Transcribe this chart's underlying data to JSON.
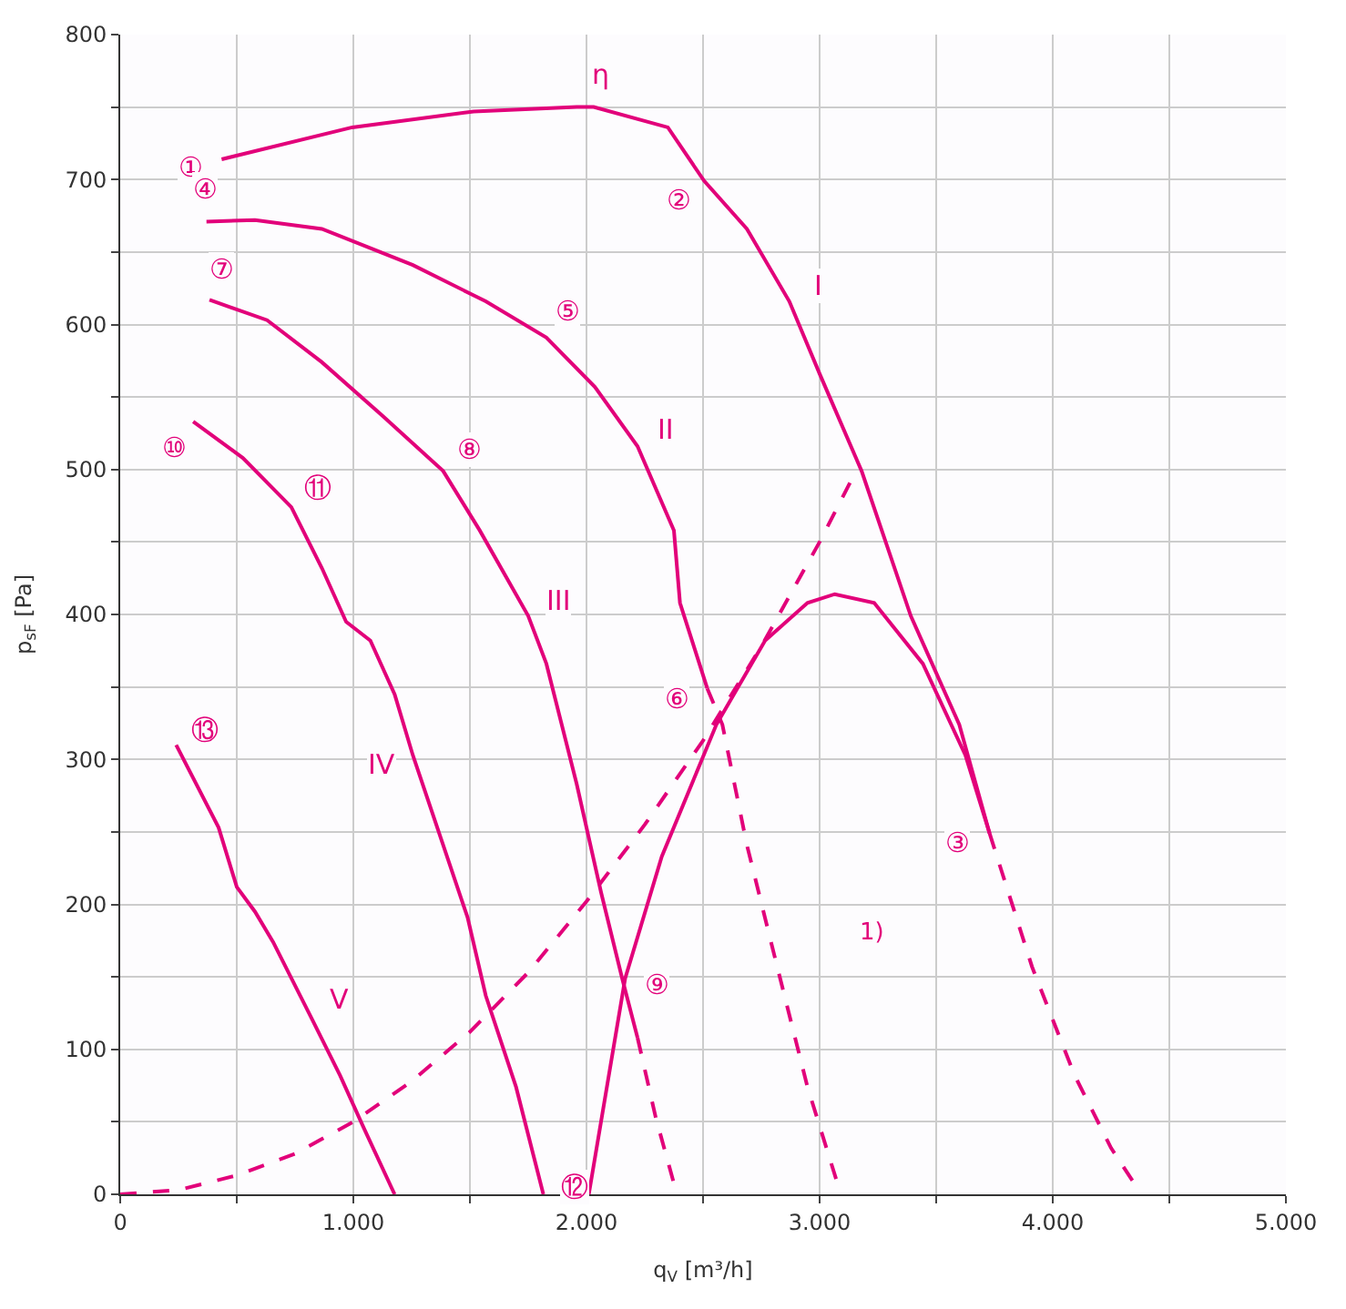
{
  "chart_data": {
    "type": "line",
    "xlabel": "q$_{V}$ [m³/h]",
    "ylabel": "p$_{sF}$ [Pa]",
    "xlim": [
      0,
      5000
    ],
    "ylim": [
      0,
      800
    ],
    "xticks": [
      {
        "value": 0,
        "label": "0"
      },
      {
        "value": 500,
        "label": null
      },
      {
        "value": 1000,
        "label": "1.000"
      },
      {
        "value": 1500,
        "label": null
      },
      {
        "value": 2000,
        "label": "2.000"
      },
      {
        "value": 2500,
        "label": null
      },
      {
        "value": 3000,
        "label": "3.000"
      },
      {
        "value": 3500,
        "label": null
      },
      {
        "value": 4000,
        "label": "4.000"
      },
      {
        "value": 4500,
        "label": null
      },
      {
        "value": 5000,
        "label": "5.000"
      }
    ],
    "yticks": [
      0,
      {
        "value": 50,
        "label": null
      },
      100,
      {
        "value": 150,
        "label": null
      },
      200,
      {
        "value": 250,
        "label": null
      },
      300,
      {
        "value": 350,
        "label": null
      },
      400,
      {
        "value": 450,
        "label": null
      },
      500,
      {
        "value": 550,
        "label": null
      },
      600,
      {
        "value": 650,
        "label": null
      },
      700,
      {
        "value": 750,
        "label": null
      },
      800
    ],
    "grid": true,
    "marker": "none",
    "series": [
      {
        "color": "#e2007a",
        "line_style": "solid",
        "x": [
          435,
          995,
          1516,
          1958,
          2031,
          2349,
          2505,
          2688,
          2870,
          3000,
          3180,
          3391,
          3599,
          3729
        ],
        "values": [
          714,
          736,
          747,
          750,
          750,
          736,
          699,
          666,
          616,
          566,
          499,
          399,
          324,
          249
        ]
      },
      {
        "color": "#e2007a",
        "line_style": "dashed",
        "x": [
          3729,
          3911,
          4094,
          4250,
          4380
        ],
        "values": [
          249,
          157,
          82,
          32,
          0
        ]
      },
      {
        "color": "#e2007a",
        "line_style": "solid",
        "x": [
          370,
          578,
          865,
          1255,
          1568,
          1828,
          2036,
          2219,
          2375,
          2401,
          2518
        ],
        "values": [
          671,
          672,
          666,
          641,
          616,
          591,
          557,
          516,
          458,
          408,
          349
        ]
      },
      {
        "color": "#e2007a",
        "line_style": "dashed",
        "x": [
          2518,
          2583,
          2688,
          2818,
          2948,
          3091
        ],
        "values": [
          349,
          324,
          241,
          157,
          74,
          0
        ]
      },
      {
        "color": "#e2007a",
        "line_style": "solid",
        "x": [
          383,
          630,
          865,
          1125,
          1385,
          1542,
          1750,
          1828,
          1958,
          2063,
          2153,
          2219
        ],
        "values": [
          617,
          603,
          574,
          537,
          499,
          458,
          399,
          366,
          283,
          208,
          149,
          108
        ]
      },
      {
        "color": "#e2007a",
        "line_style": "dashed",
        "x": [
          2219,
          2297,
          2388
        ],
        "values": [
          108,
          53,
          0
        ]
      },
      {
        "color": "#e2007a",
        "line_style": "solid",
        "x": [
          313,
          526,
          734,
          865,
          969,
          1073,
          1177,
          1255,
          1385,
          1490,
          1568,
          1698,
          1815
        ],
        "values": [
          533,
          508,
          474,
          432,
          395,
          382,
          345,
          303,
          241,
          191,
          137,
          74,
          0
        ]
      },
      {
        "color": "#e2007a",
        "line_style": "solid",
        "x": [
          240,
          422,
          500,
          578,
          656,
          813,
          943,
          1047,
          1177
        ],
        "values": [
          310,
          253,
          212,
          195,
          174,
          124,
          82,
          45,
          0
        ]
      },
      {
        "color": "#e2007a",
        "line_style": "dashed",
        "x": [
          0,
          250,
          500,
          750,
          1000,
          1250,
          1500,
          1750,
          2000,
          2250,
          2500,
          2750,
          3000,
          3156
        ],
        "values": [
          0,
          3,
          13,
          28,
          50,
          78,
          112,
          153,
          202,
          255,
          313,
          378,
          450,
          499
        ]
      },
      {
        "color": "#e2007a",
        "line_style": "solid",
        "x": [
          2010,
          2166,
          2323,
          2557,
          2766,
          2948,
          3065,
          3234,
          3443,
          3625,
          3729
        ],
        "values": [
          0,
          149,
          233,
          324,
          382,
          408,
          414,
          408,
          366,
          303,
          249
        ]
      }
    ],
    "annotations": [
      {
        "text": "①",
        "x": 435,
        "y": 714
      },
      {
        "text": "②",
        "x": 2505,
        "y": 699
      },
      {
        "text": "③",
        "x": 3729,
        "y": 249
      },
      {
        "text": "④",
        "x": 370,
        "y": 671
      },
      {
        "text": "⑤",
        "x": 1828,
        "y": 591
      },
      {
        "text": "⑥",
        "x": 2518,
        "y": 349
      },
      {
        "text": "⑦",
        "x": 383,
        "y": 617
      },
      {
        "text": "⑧",
        "x": 1385,
        "y": 499
      },
      {
        "text": "⑨",
        "x": 2166,
        "y": 149
      },
      {
        "text": "⑩",
        "x": 313,
        "y": 533
      },
      {
        "text": "⑪",
        "x": 734,
        "y": 474
      },
      {
        "text": "⑫",
        "x": 1815,
        "y": 0
      },
      {
        "text": "⑬",
        "x": 240,
        "y": 310
      },
      {
        "text": "η",
        "x": 2031,
        "y": 750
      },
      {
        "text": "I",
        "x": 2870,
        "y": 616
      },
      {
        "text": "II",
        "x": 2219,
        "y": 516
      },
      {
        "text": "III",
        "x": 1750,
        "y": 399
      },
      {
        "text": "IV",
        "x": 1255,
        "y": 303
      },
      {
        "text": "V",
        "x": 813,
        "y": 124
      },
      "1)"
    ]
  }
}
